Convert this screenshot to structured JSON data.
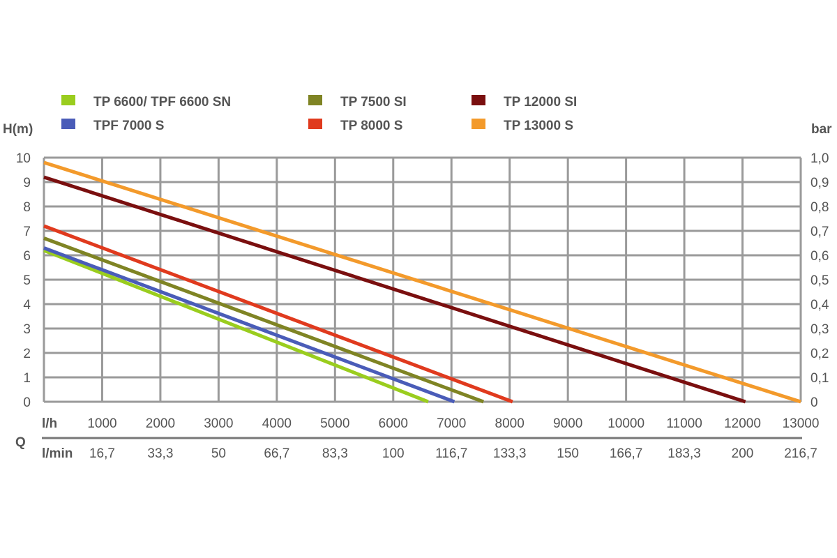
{
  "chart_data": {
    "type": "line",
    "title": "",
    "ylabel": "H(m)",
    "y2label": "bar",
    "xlabel": "Q",
    "x_unit_primary": "l/h",
    "x_unit_secondary": "l/min",
    "xlim": [
      0,
      13000
    ],
    "ylim": [
      0,
      10
    ],
    "grid": true,
    "legend_placement": "top",
    "x_ticks": [
      1000,
      2000,
      3000,
      4000,
      5000,
      6000,
      7000,
      8000,
      9000,
      10000,
      11000,
      12000,
      13000
    ],
    "x_tick_labels": [
      "1000",
      "2000",
      "3000",
      "4000",
      "5000",
      "6000",
      "7000",
      "8000",
      "9000",
      "10000",
      "11000",
      "12000",
      "13000"
    ],
    "x2_tick_labels": [
      "16,7",
      "33,3",
      "50",
      "66,7",
      "83,3",
      "100",
      "116,7",
      "133,3",
      "150",
      "166,7",
      "183,3",
      "200",
      "216,7"
    ],
    "y_tick_labels": [
      "0",
      "1",
      "2",
      "3",
      "4",
      "5",
      "6",
      "7",
      "8",
      "9",
      "10"
    ],
    "y2_tick_labels": [
      "0",
      "0,1",
      "0,2",
      "0,3",
      "0,4",
      "0,5",
      "0,6",
      "0,7",
      "0,8",
      "0,9",
      "1,0"
    ],
    "series": [
      {
        "name": "TP 6600/ TPF 6600 SN",
        "color": "#9acd1e",
        "x": [
          0,
          6600
        ],
        "y": [
          6.2,
          0
        ]
      },
      {
        "name": "TPF 7000 S",
        "color": "#4a5cb8",
        "x": [
          0,
          7050
        ],
        "y": [
          6.3,
          0
        ]
      },
      {
        "name": "TP 7500 SI",
        "color": "#7f8424",
        "x": [
          0,
          7550
        ],
        "y": [
          6.7,
          0
        ]
      },
      {
        "name": "TP 8000 S",
        "color": "#e03a1e",
        "x": [
          0,
          8050
        ],
        "y": [
          7.2,
          0
        ]
      },
      {
        "name": "TP 12000 SI",
        "color": "#7a0f0f",
        "x": [
          0,
          12050
        ],
        "y": [
          9.2,
          0
        ]
      },
      {
        "name": "TP 13000 S",
        "color": "#f39a2b",
        "x": [
          0,
          13000
        ],
        "y": [
          9.8,
          0
        ]
      }
    ],
    "legend_order": [
      0,
      2,
      4,
      1,
      3,
      5
    ],
    "grid_color": "#9a9a9a"
  }
}
